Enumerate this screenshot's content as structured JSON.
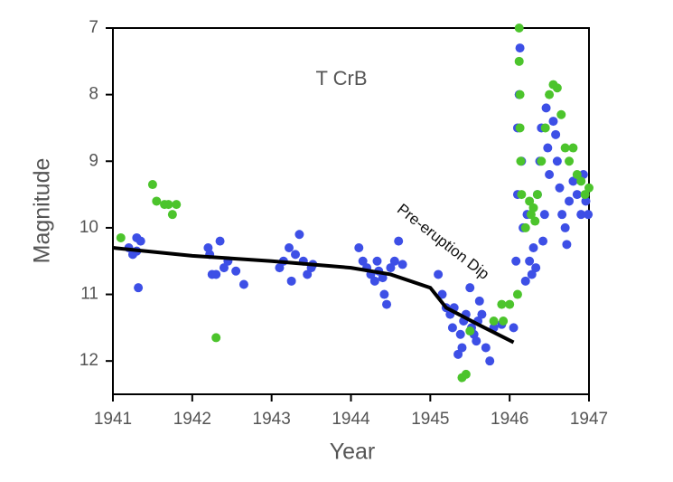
{
  "chart_data": {
    "type": "scatter",
    "title": "T CrB",
    "annotation": "Pre-eruption Dip",
    "x_label": "Year",
    "y_label": "Magnitude",
    "xlim": [
      1941,
      1947
    ],
    "xticks": [
      1941,
      1942,
      1943,
      1944,
      1945,
      1946,
      1947
    ],
    "ylim": [
      12.5,
      7
    ],
    "yticks": [
      7,
      8,
      9,
      10,
      11,
      12
    ],
    "series": [
      {
        "color": "#3d4fe6",
        "x": [
          1941.2,
          1941.25,
          1941.3,
          1941.3,
          1941.32,
          1941.35,
          1942.2,
          1942.22,
          1942.25,
          1942.3,
          1942.35,
          1942.4,
          1942.45,
          1942.55,
          1942.65,
          1943.1,
          1943.15,
          1943.22,
          1943.25,
          1943.3,
          1943.35,
          1943.4,
          1943.45,
          1943.5,
          1943.52,
          1944.1,
          1944.15,
          1944.2,
          1944.25,
          1944.3,
          1944.33,
          1944.35,
          1944.4,
          1944.42,
          1944.45,
          1944.5,
          1944.55,
          1944.6,
          1944.65,
          1945.1,
          1945.15,
          1945.2,
          1945.25,
          1945.28,
          1945.3,
          1945.35,
          1945.38,
          1945.4,
          1945.42,
          1945.45,
          1945.5,
          1945.52,
          1945.55,
          1945.58,
          1945.6,
          1945.62,
          1945.65,
          1945.7,
          1945.75,
          1945.8,
          1945.9,
          1946.05,
          1946.08,
          1946.1,
          1946.1,
          1946.12,
          1946.13,
          1946.15,
          1946.17,
          1946.2,
          1946.22,
          1946.25,
          1946.28,
          1946.3,
          1946.33,
          1946.35,
          1946.38,
          1946.4,
          1946.42,
          1946.44,
          1946.46,
          1946.48,
          1946.5,
          1946.55,
          1946.58,
          1946.6,
          1946.63,
          1946.66,
          1946.7,
          1946.72,
          1946.75,
          1946.8,
          1946.85,
          1946.9,
          1946.93,
          1946.96,
          1946.99
        ],
        "values": [
          10.3,
          10.4,
          10.35,
          10.15,
          10.9,
          10.2,
          10.3,
          10.4,
          10.7,
          10.7,
          10.2,
          10.6,
          10.5,
          10.65,
          10.85,
          10.6,
          10.5,
          10.3,
          10.8,
          10.4,
          10.1,
          10.5,
          10.7,
          10.6,
          10.55,
          10.3,
          10.5,
          10.6,
          10.7,
          10.8,
          10.5,
          10.65,
          10.75,
          11.0,
          11.15,
          10.6,
          10.5,
          10.2,
          10.55,
          10.7,
          11.0,
          11.2,
          11.3,
          11.5,
          11.2,
          11.9,
          11.6,
          11.8,
          11.4,
          11.3,
          10.9,
          11.5,
          11.6,
          11.7,
          11.4,
          11.1,
          11.3,
          11.8,
          12.0,
          11.5,
          11.45,
          11.5,
          10.5,
          9.5,
          8.5,
          8.0,
          7.3,
          9.0,
          10.0,
          10.8,
          9.8,
          10.5,
          10.7,
          10.3,
          10.6,
          9.5,
          9.0,
          8.5,
          10.2,
          9.8,
          8.2,
          8.8,
          9.2,
          8.4,
          8.6,
          9.0,
          9.4,
          9.8,
          10.0,
          10.25,
          9.6,
          9.3,
          9.5,
          9.8,
          9.2,
          9.6,
          9.8
        ]
      },
      {
        "color": "#4cc42c",
        "x": [
          1941.1,
          1941.5,
          1941.55,
          1941.65,
          1941.7,
          1941.75,
          1941.8,
          1942.3,
          1945.4,
          1945.45,
          1945.5,
          1945.8,
          1945.9,
          1945.92,
          1946.0,
          1946.1,
          1946.12,
          1946.12,
          1946.13,
          1946.13,
          1946.14,
          1946.15,
          1946.2,
          1946.25,
          1946.27,
          1946.3,
          1946.32,
          1946.35,
          1946.4,
          1946.45,
          1946.5,
          1946.55,
          1946.6,
          1946.65,
          1946.7,
          1946.75,
          1946.8,
          1946.85,
          1946.9,
          1946.95,
          1947.0
        ],
        "values": [
          10.15,
          9.35,
          9.6,
          9.65,
          9.65,
          9.8,
          9.65,
          11.65,
          12.25,
          12.2,
          11.55,
          11.4,
          11.15,
          11.4,
          11.15,
          11.0,
          7.0,
          7.5,
          8.0,
          8.5,
          9.0,
          9.5,
          10.0,
          9.6,
          9.8,
          9.7,
          9.9,
          9.5,
          9.0,
          8.5,
          8.0,
          7.85,
          7.9,
          8.3,
          8.8,
          9.0,
          8.8,
          9.2,
          9.3,
          9.5,
          9.4
        ]
      }
    ],
    "trend": {
      "color": "#000000",
      "x": [
        1941,
        1942,
        1943,
        1944,
        1944.5,
        1945,
        1945.2,
        1945.6,
        1946.05
      ],
      "values": [
        10.3,
        10.42,
        10.5,
        10.6,
        10.7,
        10.9,
        11.2,
        11.45,
        11.72
      ]
    }
  }
}
